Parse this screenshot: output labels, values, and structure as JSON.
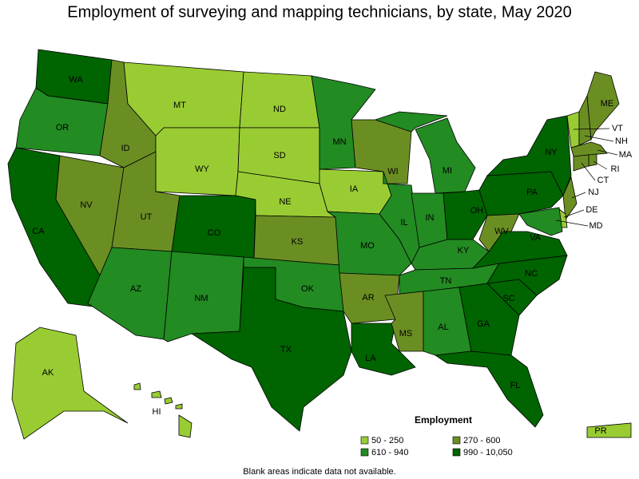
{
  "title": "Employment of surveying and mapping technicians, by state, May 2020",
  "legend": {
    "title": "Employment",
    "items": [
      {
        "label": "50 - 250",
        "color": "#99cc33"
      },
      {
        "label": "270 - 600",
        "color": "#6b8e23"
      },
      {
        "label": "610 - 940",
        "color": "#228b22"
      },
      {
        "label": "990 - 10,050",
        "color": "#006400"
      }
    ]
  },
  "states": [
    {
      "label": "WA",
      "category": 3
    },
    {
      "label": "OR",
      "category": 2
    },
    {
      "label": "CA",
      "category": 3
    },
    {
      "label": "NV",
      "category": 1
    },
    {
      "label": "ID",
      "category": 1
    },
    {
      "label": "MT",
      "category": 0
    },
    {
      "label": "WY",
      "category": 0
    },
    {
      "label": "UT",
      "category": 1
    },
    {
      "label": "CO",
      "category": 3
    },
    {
      "label": "AZ",
      "category": 2
    },
    {
      "label": "NM",
      "category": 2
    },
    {
      "label": "ND",
      "category": 0
    },
    {
      "label": "SD",
      "category": 0
    },
    {
      "label": "NE",
      "category": 0
    },
    {
      "label": "KS",
      "category": 1
    },
    {
      "label": "OK",
      "category": 2
    },
    {
      "label": "TX",
      "category": 3
    },
    {
      "label": "MN",
      "category": 2
    },
    {
      "label": "IA",
      "category": 0
    },
    {
      "label": "MO",
      "category": 2
    },
    {
      "label": "AR",
      "category": 1
    },
    {
      "label": "LA",
      "category": 3
    },
    {
      "label": "WI",
      "category": 1
    },
    {
      "label": "IL",
      "category": 2
    },
    {
      "label": "MI",
      "category": 2
    },
    {
      "label": "IN",
      "category": 2
    },
    {
      "label": "OH",
      "category": 3
    },
    {
      "label": "KY",
      "category": 2
    },
    {
      "label": "TN",
      "category": 2
    },
    {
      "label": "MS",
      "category": 1
    },
    {
      "label": "AL",
      "category": 2
    },
    {
      "label": "GA",
      "category": 3
    },
    {
      "label": "FL",
      "category": 3
    },
    {
      "label": "SC",
      "category": 3
    },
    {
      "label": "NC",
      "category": 3
    },
    {
      "label": "VA",
      "category": 3
    },
    {
      "label": "WV",
      "category": 1
    },
    {
      "label": "PA",
      "category": 3
    },
    {
      "label": "NY",
      "category": 3
    },
    {
      "label": "VT",
      "category": 0
    },
    {
      "label": "NH",
      "category": 1
    },
    {
      "label": "ME",
      "category": 1
    },
    {
      "label": "MA",
      "category": 1
    },
    {
      "label": "RI",
      "category": 1
    },
    {
      "label": "CT",
      "category": 1
    },
    {
      "label": "NJ",
      "category": 1
    },
    {
      "label": "DE",
      "category": 0
    },
    {
      "label": "MD",
      "category": 2
    },
    {
      "label": "AK",
      "category": 0
    },
    {
      "label": "HI",
      "category": 0
    },
    {
      "label": "PR",
      "category": 0
    }
  ],
  "note": "Blank areas indicate data not available."
}
